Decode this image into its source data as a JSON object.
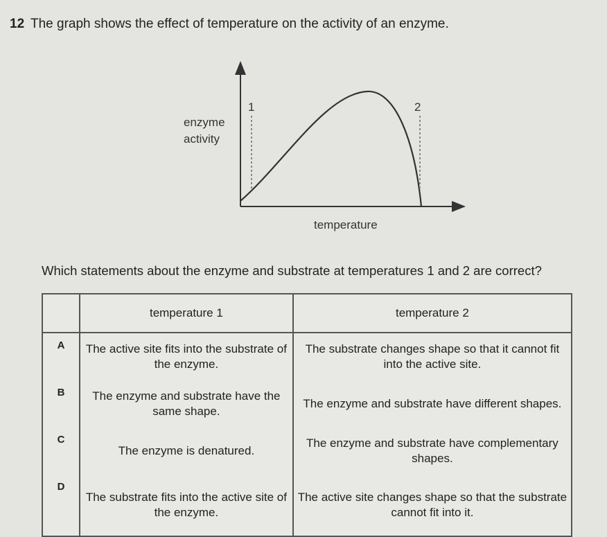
{
  "question_number": "12",
  "intro": "The graph shows the effect of temperature on the activity of an enzyme.",
  "graph": {
    "y_label_line1": "enzyme",
    "y_label_line2": "activity",
    "x_label": "temperature",
    "marker_1": "1",
    "marker_2": "2"
  },
  "question": "Which statements about the enzyme and substrate at temperatures 1 and 2 are correct?",
  "table": {
    "headers": [
      "",
      "temperature 1",
      "temperature 2"
    ],
    "rows": [
      {
        "key": "A",
        "t1": "The active site fits into the substrate of the enzyme.",
        "t2": "The substrate changes shape so that it cannot fit into the active site."
      },
      {
        "key": "B",
        "t1": "The enzyme and substrate have the same shape.",
        "t2": "The enzyme and substrate have different shapes."
      },
      {
        "key": "C",
        "t1": "The enzyme is denatured.",
        "t2": "The enzyme and substrate have complementary shapes."
      },
      {
        "key": "D",
        "t1": "The substrate fits into the active site of the enzyme.",
        "t2": "The active site changes shape so that the substrate cannot fit into it."
      }
    ]
  }
}
